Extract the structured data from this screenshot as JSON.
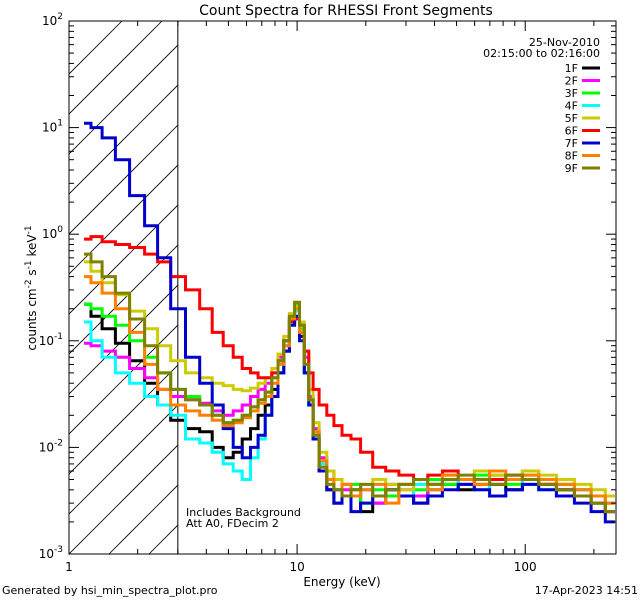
{
  "chart_data": {
    "type": "line",
    "title": "Count Spectra for RHESSI Front Segments",
    "xlabel": "Energy (keV)",
    "ylabel_base": "counts cm",
    "ylabel_exp1": "-2",
    "ylabel_mid": " s",
    "ylabel_exp2": "-1",
    "ylabel_mid2": " keV",
    "ylabel_exp3": "-1",
    "xscale": "log",
    "yscale": "log",
    "xlim": [
      1,
      250
    ],
    "ylim": [
      0.001,
      100
    ],
    "x_ticks": [
      {
        "value": 1,
        "label": "1"
      },
      {
        "value": 10,
        "label": "10"
      },
      {
        "value": 100,
        "label": "100"
      }
    ],
    "y_ticks": [
      {
        "value": 0.001,
        "base": "10",
        "exp": "-3"
      },
      {
        "value": 0.01,
        "base": "10",
        "exp": "-2"
      },
      {
        "value": 0.1,
        "base": "10",
        "exp": "-1"
      },
      {
        "value": 1,
        "base": "10",
        "exp": "0"
      },
      {
        "value": 10,
        "base": "10",
        "exp": "1"
      },
      {
        "value": 100,
        "base": "10",
        "exp": "2"
      }
    ],
    "date": "25-Nov-2010",
    "time_range": "02:15:00 to 02:16:00",
    "shaded_region": [
      1,
      3
    ],
    "annotations": [
      "Includes Background",
      "Att A0, FDecim 2"
    ],
    "series": [
      {
        "name": "1F",
        "color": "#000000",
        "x": [
          1.2,
          1.3,
          1.5,
          1.7,
          2.0,
          2.3,
          2.6,
          3.0,
          3.5,
          4.0,
          4.5,
          5.0,
          5.5,
          6.0,
          6.5,
          7.0,
          7.5,
          8.0,
          8.5,
          9.0,
          9.5,
          10.0,
          10.5,
          11.0,
          11.5,
          12.0,
          13.0,
          14.0,
          15.0,
          16.5,
          18.0,
          20.0,
          23.0,
          26.0,
          30.0,
          35.0,
          40.0,
          47.0,
          55.0,
          65.0,
          75.0,
          90.0,
          105.0,
          125.0,
          150.0,
          180.0,
          210.0,
          240.0
        ],
        "y": [
          0.22,
          0.17,
          0.13,
          0.095,
          0.065,
          0.04,
          0.025,
          0.018,
          0.015,
          0.014,
          0.01,
          0.008,
          0.009,
          0.012,
          0.015,
          0.02,
          0.025,
          0.035,
          0.05,
          0.08,
          0.15,
          0.2,
          0.11,
          0.05,
          0.025,
          0.012,
          0.006,
          0.004,
          0.003,
          0.0035,
          0.004,
          0.0025,
          0.003,
          0.004,
          0.0035,
          0.003,
          0.004,
          0.0045,
          0.004,
          0.005,
          0.0045,
          0.004,
          0.005,
          0.0045,
          0.004,
          0.0035,
          0.003,
          0.0025
        ]
      },
      {
        "name": "2F",
        "color": "#ff00ff",
        "x": [
          1.2,
          1.3,
          1.5,
          1.7,
          2.0,
          2.3,
          2.6,
          3.0,
          3.5,
          4.0,
          4.5,
          5.0,
          5.5,
          6.0,
          6.5,
          7.0,
          7.5,
          8.0,
          8.5,
          9.0,
          9.5,
          10.0,
          10.5,
          11.0,
          11.5,
          12.0,
          13.0,
          14.0,
          15.0,
          16.5,
          18.0,
          20.0,
          23.0,
          26.0,
          30.0,
          35.0,
          40.0,
          47.0,
          55.0,
          65.0,
          75.0,
          90.0,
          105.0,
          125.0,
          150.0,
          180.0,
          210.0,
          240.0
        ],
        "y": [
          0.095,
          0.09,
          0.08,
          0.07,
          0.055,
          0.045,
          0.035,
          0.03,
          0.028,
          0.026,
          0.022,
          0.02,
          0.022,
          0.025,
          0.03,
          0.035,
          0.04,
          0.05,
          0.07,
          0.1,
          0.16,
          0.2,
          0.14,
          0.07,
          0.03,
          0.015,
          0.008,
          0.006,
          0.005,
          0.004,
          0.0035,
          0.004,
          0.003,
          0.0045,
          0.004,
          0.0035,
          0.0045,
          0.005,
          0.0045,
          0.005,
          0.0055,
          0.005,
          0.006,
          0.005,
          0.0045,
          0.004,
          0.0035,
          0.003
        ]
      },
      {
        "name": "3F",
        "color": "#00ff00",
        "x": [
          1.2,
          1.3,
          1.5,
          1.7,
          2.0,
          2.3,
          2.6,
          3.0,
          3.5,
          4.0,
          4.5,
          5.0,
          5.5,
          6.0,
          6.5,
          7.0,
          7.5,
          8.0,
          8.5,
          9.0,
          9.5,
          10.0,
          10.5,
          11.0,
          11.5,
          12.0,
          13.0,
          14.0,
          15.0,
          16.5,
          18.0,
          20.0,
          23.0,
          26.0,
          30.0,
          35.0,
          40.0,
          47.0,
          55.0,
          65.0,
          75.0,
          90.0,
          105.0,
          125.0,
          150.0,
          180.0,
          210.0,
          240.0
        ],
        "y": [
          0.22,
          0.2,
          0.17,
          0.14,
          0.1,
          0.07,
          0.05,
          0.035,
          0.03,
          0.025,
          0.02,
          0.017,
          0.018,
          0.02,
          0.024,
          0.028,
          0.033,
          0.045,
          0.065,
          0.1,
          0.17,
          0.22,
          0.13,
          0.06,
          0.028,
          0.013,
          0.007,
          0.005,
          0.004,
          0.0035,
          0.0045,
          0.003,
          0.004,
          0.0035,
          0.0045,
          0.004,
          0.005,
          0.0045,
          0.005,
          0.0055,
          0.005,
          0.0045,
          0.0055,
          0.005,
          0.0045,
          0.004,
          0.0035,
          0.003
        ]
      },
      {
        "name": "4F",
        "color": "#00ffff",
        "x": [
          1.2,
          1.3,
          1.5,
          1.7,
          2.0,
          2.3,
          2.6,
          3.0,
          3.5,
          4.0,
          4.5,
          5.0,
          5.5,
          6.0,
          6.5,
          7.0,
          7.5,
          8.0,
          8.5,
          9.0,
          9.5,
          10.0,
          10.5,
          11.0,
          11.5,
          12.0,
          13.0,
          14.0,
          15.0,
          16.5,
          18.0,
          20.0,
          23.0,
          26.0,
          30.0,
          35.0,
          40.0,
          47.0,
          55.0,
          65.0,
          75.0,
          90.0,
          105.0,
          125.0,
          150.0,
          180.0,
          210.0,
          240.0
        ],
        "y": [
          0.15,
          0.1,
          0.07,
          0.05,
          0.04,
          0.03,
          0.025,
          0.02,
          0.012,
          0.011,
          0.009,
          0.007,
          0.006,
          0.005,
          0.008,
          0.012,
          0.02,
          0.03,
          0.05,
          0.09,
          0.16,
          0.19,
          0.12,
          0.05,
          0.025,
          0.013,
          0.007,
          0.005,
          0.004,
          0.0045,
          0.0035,
          0.004,
          0.0045,
          0.004,
          0.0035,
          0.0045,
          0.004,
          0.005,
          0.0045,
          0.004,
          0.0055,
          0.005,
          0.0045,
          0.004,
          0.0035,
          0.004,
          0.003,
          0.0025
        ]
      },
      {
        "name": "5F",
        "color": "#cccc00",
        "x": [
          1.2,
          1.3,
          1.5,
          1.7,
          2.0,
          2.3,
          2.6,
          3.0,
          3.5,
          4.0,
          4.5,
          5.0,
          5.5,
          6.0,
          6.5,
          7.0,
          7.5,
          8.0,
          8.5,
          9.0,
          9.5,
          10.0,
          10.5,
          11.0,
          11.5,
          12.0,
          13.0,
          14.0,
          15.0,
          16.5,
          18.0,
          20.0,
          23.0,
          26.0,
          30.0,
          35.0,
          40.0,
          47.0,
          55.0,
          65.0,
          75.0,
          90.0,
          105.0,
          125.0,
          150.0,
          180.0,
          210.0,
          240.0
        ],
        "y": [
          0.55,
          0.45,
          0.35,
          0.27,
          0.19,
          0.13,
          0.09,
          0.065,
          0.05,
          0.045,
          0.04,
          0.038,
          0.035,
          0.034,
          0.036,
          0.04,
          0.045,
          0.055,
          0.075,
          0.11,
          0.18,
          0.21,
          0.15,
          0.08,
          0.035,
          0.017,
          0.009,
          0.006,
          0.005,
          0.0045,
          0.004,
          0.0045,
          0.005,
          0.0045,
          0.004,
          0.005,
          0.0045,
          0.0055,
          0.005,
          0.006,
          0.0055,
          0.005,
          0.006,
          0.0055,
          0.005,
          0.0045,
          0.004,
          0.0035
        ]
      },
      {
        "name": "6F",
        "color": "#ff0000",
        "x": [
          1.2,
          1.3,
          1.5,
          1.7,
          2.0,
          2.3,
          2.6,
          3.0,
          3.5,
          4.0,
          4.5,
          5.0,
          5.5,
          6.0,
          6.5,
          7.0,
          7.5,
          8.0,
          8.5,
          9.0,
          9.5,
          10.0,
          10.5,
          11.0,
          11.5,
          12.0,
          13.0,
          14.0,
          15.0,
          16.5,
          18.0,
          20.0,
          23.0,
          26.0,
          30.0,
          35.0,
          40.0,
          47.0,
          55.0,
          65.0,
          75.0,
          90.0,
          105.0,
          125.0,
          150.0,
          180.0,
          210.0,
          240.0
        ],
        "y": [
          0.9,
          0.95,
          0.85,
          0.8,
          0.75,
          0.65,
          0.55,
          0.4,
          0.3,
          0.2,
          0.12,
          0.09,
          0.07,
          0.055,
          0.05,
          0.045,
          0.045,
          0.05,
          0.065,
          0.1,
          0.15,
          0.16,
          0.12,
          0.08,
          0.05,
          0.035,
          0.025,
          0.02,
          0.016,
          0.013,
          0.012,
          0.009,
          0.0065,
          0.006,
          0.0055,
          0.005,
          0.0055,
          0.006,
          0.005,
          0.0045,
          0.005,
          0.0055,
          0.005,
          0.0045,
          0.004,
          0.0035,
          0.003,
          0.0025
        ]
      },
      {
        "name": "7F",
        "color": "#0000cc",
        "x": [
          1.2,
          1.3,
          1.5,
          1.7,
          2.0,
          2.3,
          2.6,
          3.0,
          3.5,
          4.0,
          4.5,
          5.0,
          5.5,
          6.0,
          6.5,
          7.0,
          7.5,
          8.0,
          8.5,
          9.0,
          9.5,
          10.0,
          10.5,
          11.0,
          11.5,
          12.0,
          13.0,
          14.0,
          15.0,
          16.5,
          18.0,
          20.0,
          23.0,
          26.0,
          30.0,
          35.0,
          40.0,
          47.0,
          55.0,
          65.0,
          75.0,
          90.0,
          105.0,
          125.0,
          150.0,
          180.0,
          210.0,
          240.0
        ],
        "y": [
          11.0,
          10.0,
          8.0,
          5.0,
          2.3,
          1.2,
          0.6,
          0.2,
          0.07,
          0.04,
          0.025,
          0.015,
          0.01,
          0.008,
          0.01,
          0.013,
          0.02,
          0.03,
          0.05,
          0.08,
          0.14,
          0.17,
          0.1,
          0.05,
          0.025,
          0.012,
          0.006,
          0.004,
          0.003,
          0.0035,
          0.0025,
          0.003,
          0.0035,
          0.004,
          0.0035,
          0.003,
          0.0035,
          0.004,
          0.0045,
          0.004,
          0.0035,
          0.004,
          0.0045,
          0.004,
          0.0035,
          0.003,
          0.0025,
          0.002
        ]
      },
      {
        "name": "8F",
        "color": "#ff8000",
        "x": [
          1.2,
          1.3,
          1.5,
          1.7,
          2.0,
          2.3,
          2.6,
          3.0,
          3.5,
          4.0,
          4.5,
          5.0,
          5.5,
          6.0,
          6.5,
          7.0,
          7.5,
          8.0,
          8.5,
          9.0,
          9.5,
          10.0,
          10.5,
          11.0,
          11.5,
          12.0,
          13.0,
          14.0,
          15.0,
          16.5,
          18.0,
          20.0,
          23.0,
          26.0,
          30.0,
          35.0,
          40.0,
          47.0,
          55.0,
          65.0,
          75.0,
          90.0,
          105.0,
          125.0,
          150.0,
          180.0,
          210.0,
          240.0
        ],
        "y": [
          0.4,
          0.35,
          0.28,
          0.2,
          0.12,
          0.06,
          0.035,
          0.025,
          0.022,
          0.02,
          0.018,
          0.016,
          0.017,
          0.019,
          0.022,
          0.026,
          0.03,
          0.04,
          0.06,
          0.09,
          0.16,
          0.2,
          0.12,
          0.06,
          0.028,
          0.014,
          0.0075,
          0.005,
          0.004,
          0.0045,
          0.0035,
          0.004,
          0.0045,
          0.003,
          0.0045,
          0.005,
          0.004,
          0.0055,
          0.005,
          0.0045,
          0.006,
          0.005,
          0.0055,
          0.005,
          0.0045,
          0.004,
          0.0035,
          0.003
        ]
      },
      {
        "name": "9F",
        "color": "#808000",
        "x": [
          1.2,
          1.3,
          1.5,
          1.7,
          2.0,
          2.3,
          2.6,
          3.0,
          3.5,
          4.0,
          4.5,
          5.0,
          5.5,
          6.0,
          6.5,
          7.0,
          7.5,
          8.0,
          8.5,
          9.0,
          9.5,
          10.0,
          10.5,
          11.0,
          11.5,
          12.0,
          13.0,
          14.0,
          15.0,
          16.5,
          18.0,
          20.0,
          23.0,
          26.0,
          30.0,
          35.0,
          40.0,
          47.0,
          55.0,
          65.0,
          75.0,
          90.0,
          105.0,
          125.0,
          150.0,
          180.0,
          210.0,
          240.0
        ],
        "y": [
          0.65,
          0.55,
          0.4,
          0.28,
          0.16,
          0.09,
          0.05,
          0.035,
          0.028,
          0.025,
          0.02,
          0.017,
          0.018,
          0.02,
          0.024,
          0.028,
          0.033,
          0.045,
          0.065,
          0.1,
          0.17,
          0.23,
          0.14,
          0.06,
          0.028,
          0.013,
          0.0065,
          0.0045,
          0.004,
          0.0035,
          0.004,
          0.0045,
          0.0035,
          0.004,
          0.0045,
          0.005,
          0.0045,
          0.005,
          0.0055,
          0.005,
          0.0045,
          0.0055,
          0.005,
          0.0045,
          0.004,
          0.0035,
          0.003,
          0.0025
        ]
      }
    ]
  },
  "footer": {
    "generated_by": "Generated by hsi_min_spectra_plot.pro",
    "timestamp": "17-Apr-2023 14:51"
  }
}
